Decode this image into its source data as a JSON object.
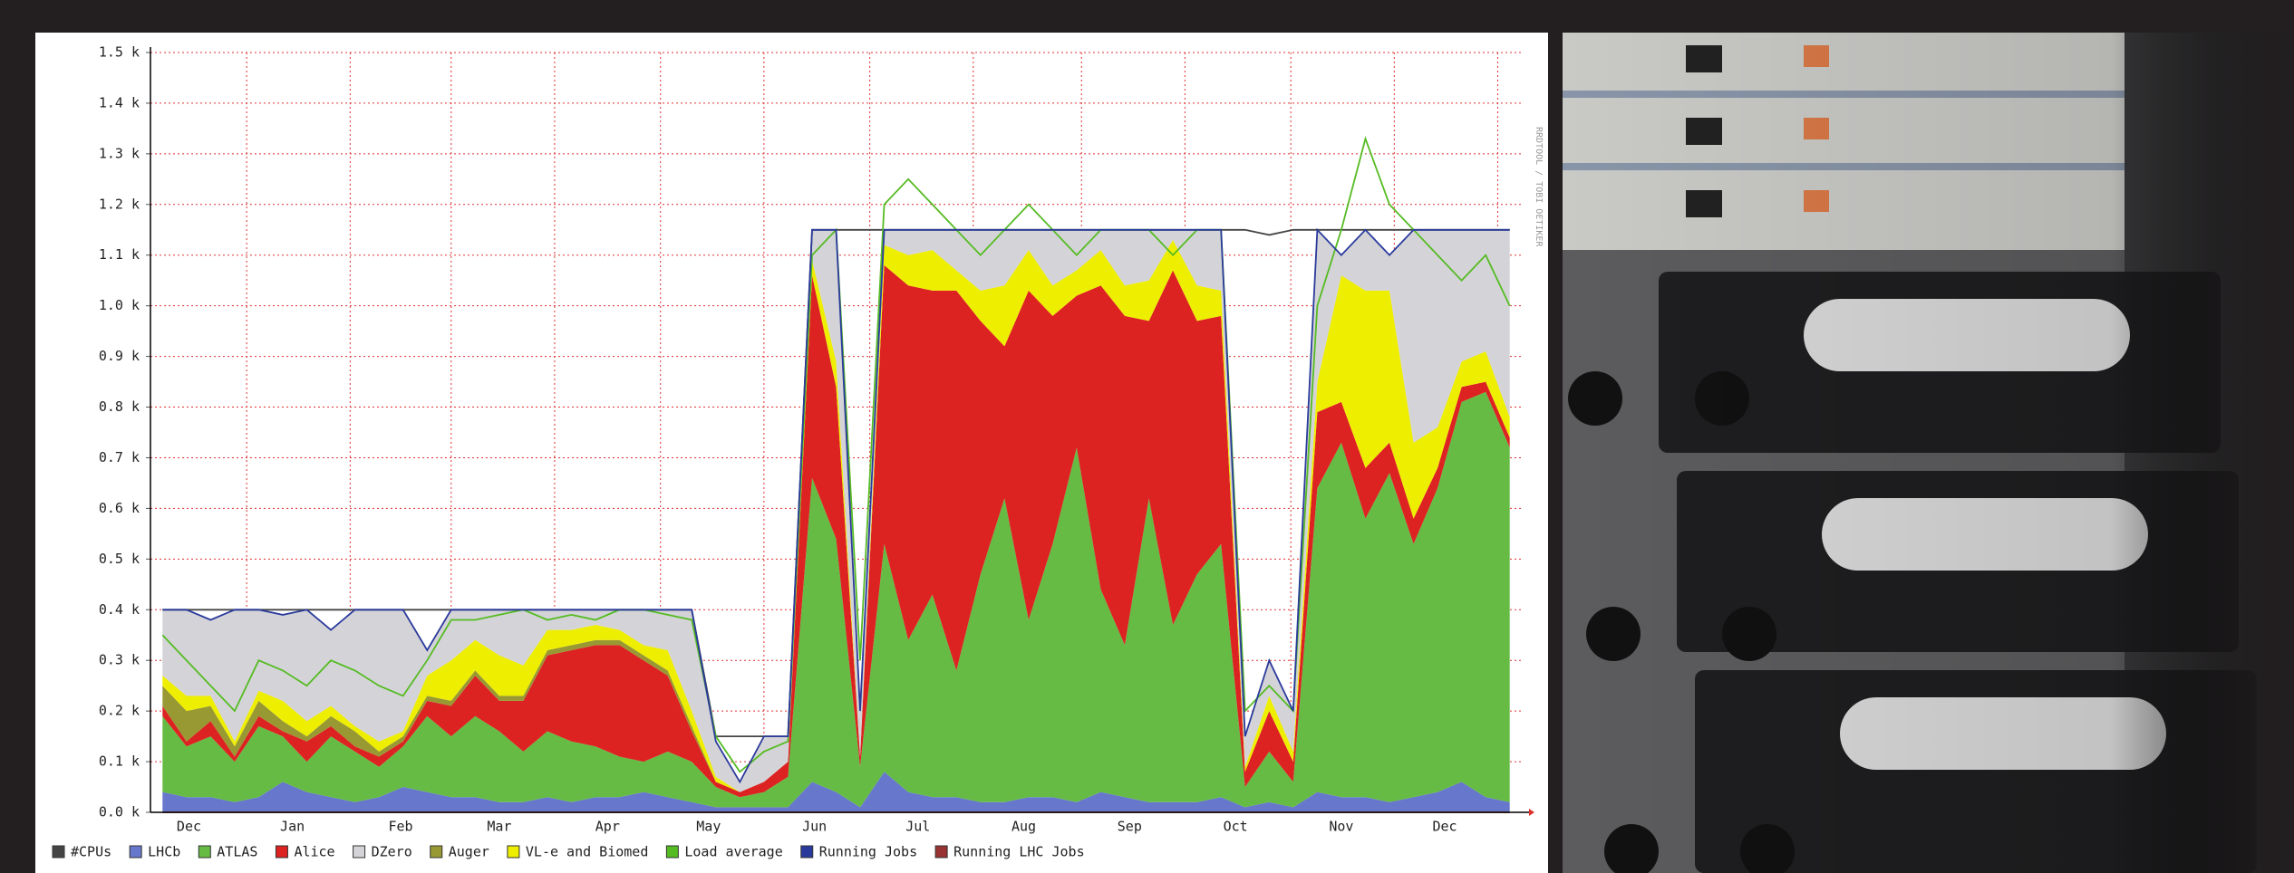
{
  "chart_data": {
    "type": "stacked-area",
    "watermark": "RRDTOOL / TOBI OETIKER",
    "x": [
      0.5,
      1.5,
      2.5,
      3.5,
      4.5,
      5.5,
      6.5,
      7.5,
      8.5,
      9.5,
      10.5,
      11.5,
      12.5,
      13.5,
      14.5,
      15.5,
      16.5,
      17.5,
      18.5,
      19.5,
      20.5,
      21.5,
      22.5,
      23.5,
      24.5,
      25.5,
      26.5,
      27.5,
      28.5,
      29.5,
      30.5,
      31.5,
      32.5,
      33.5,
      34.5,
      35.5,
      36.5,
      37.5,
      38.5,
      39.5,
      40.5,
      41.5,
      42.5,
      43.5,
      44.5,
      45.5,
      46.5,
      47.5,
      48.5,
      49.5,
      50.5,
      51.5,
      52.5,
      53.5,
      54.5,
      55.5,
      56.5
    ],
    "xlim": [
      0,
      57
    ],
    "xticks": [
      {
        "value": 1.6,
        "label": "Dec"
      },
      {
        "value": 5.9,
        "label": "Jan"
      },
      {
        "value": 10.4,
        "label": "Feb"
      },
      {
        "value": 14.5,
        "label": "Mar"
      },
      {
        "value": 19.0,
        "label": "Apr"
      },
      {
        "value": 23.2,
        "label": "May"
      },
      {
        "value": 27.6,
        "label": "Jun"
      },
      {
        "value": 31.9,
        "label": "Jul"
      },
      {
        "value": 36.3,
        "label": "Aug"
      },
      {
        "value": 40.7,
        "label": "Sep"
      },
      {
        "value": 45.1,
        "label": "Oct"
      },
      {
        "value": 49.5,
        "label": "Nov"
      },
      {
        "value": 53.8,
        "label": "Dec"
      }
    ],
    "xgrid": [
      4.0,
      8.3,
      12.5,
      16.8,
      21.2,
      25.5,
      29.9,
      34.2,
      38.7,
      43.0,
      47.4,
      51.7,
      56.0
    ],
    "ylim": [
      0,
      1500
    ],
    "yticks": [
      {
        "value": 0,
        "label": "0.0 k"
      },
      {
        "value": 100,
        "label": "0.1 k"
      },
      {
        "value": 200,
        "label": "0.2 k"
      },
      {
        "value": 300,
        "label": "0.3 k"
      },
      {
        "value": 400,
        "label": "0.4 k"
      },
      {
        "value": 500,
        "label": "0.5 k"
      },
      {
        "value": 600,
        "label": "0.6 k"
      },
      {
        "value": 700,
        "label": "0.7 k"
      },
      {
        "value": 800,
        "label": "0.8 k"
      },
      {
        "value": 900,
        "label": "0.9 k"
      },
      {
        "value": 1000,
        "label": "1.0 k"
      },
      {
        "value": 1100,
        "label": "1.1 k"
      },
      {
        "value": 1200,
        "label": "1.2 k"
      },
      {
        "value": 1300,
        "label": "1.3 k"
      },
      {
        "value": 1400,
        "label": "1.4 k"
      },
      {
        "value": 1500,
        "label": "1.5 k"
      }
    ],
    "grid": true,
    "stack_order": [
      1,
      2,
      3,
      5,
      6,
      4
    ],
    "series": [
      {
        "name": "#CPUs",
        "color": "#444444",
        "kind": "line",
        "values": [
          400,
          400,
          400,
          400,
          400,
          400,
          400,
          400,
          400,
          400,
          400,
          400,
          400,
          400,
          400,
          400,
          400,
          400,
          400,
          400,
          400,
          400,
          400,
          150,
          150,
          150,
          150,
          1150,
          1150,
          1150,
          1150,
          1150,
          1150,
          1150,
          1150,
          1150,
          1150,
          1150,
          1150,
          1150,
          1150,
          1150,
          1150,
          1150,
          1150,
          1150,
          1140,
          1150,
          1150,
          1150,
          1150,
          1150,
          1150,
          1150,
          1150,
          1150,
          1150
        ]
      },
      {
        "name": "LHCb",
        "color": "#6677cc",
        "kind": "area",
        "values": [
          40,
          30,
          30,
          20,
          30,
          60,
          40,
          30,
          20,
          30,
          50,
          40,
          30,
          30,
          20,
          20,
          30,
          20,
          30,
          30,
          40,
          30,
          20,
          10,
          10,
          10,
          10,
          60,
          40,
          10,
          80,
          40,
          30,
          30,
          20,
          20,
          30,
          30,
          20,
          40,
          30,
          20,
          20,
          20,
          30,
          10,
          20,
          10,
          40,
          30,
          30,
          20,
          30,
          40,
          60,
          30,
          20
        ]
      },
      {
        "name": "ATLAS",
        "color": "#66bb44",
        "kind": "area",
        "values": [
          150,
          100,
          120,
          80,
          140,
          90,
          60,
          120,
          100,
          60,
          80,
          150,
          120,
          160,
          140,
          100,
          130,
          120,
          100,
          80,
          60,
          90,
          80,
          40,
          20,
          30,
          60,
          600,
          500,
          80,
          450,
          300,
          400,
          250,
          450,
          600,
          350,
          500,
          700,
          400,
          300,
          600,
          350,
          450,
          500,
          40,
          100,
          50,
          600,
          700,
          550,
          650,
          500,
          600,
          750,
          800,
          700
        ]
      },
      {
        "name": "Alice",
        "color": "#dd2222",
        "kind": "area",
        "values": [
          20,
          10,
          30,
          10,
          20,
          10,
          40,
          20,
          10,
          20,
          10,
          30,
          60,
          80,
          60,
          100,
          150,
          180,
          200,
          220,
          200,
          150,
          60,
          10,
          10,
          20,
          30,
          400,
          300,
          20,
          550,
          700,
          600,
          750,
          500,
          300,
          650,
          450,
          300,
          600,
          650,
          350,
          700,
          500,
          450,
          30,
          80,
          40,
          150,
          80,
          100,
          60,
          50,
          40,
          30,
          20,
          20
        ]
      },
      {
        "name": "DZero",
        "color": "#d4d4d8",
        "kind": "area",
        "values": [
          130,
          170,
          150,
          260,
          160,
          170,
          220,
          150,
          230,
          260,
          240,
          50,
          100,
          60,
          90,
          110,
          40,
          40,
          30,
          40,
          70,
          80,
          200,
          70,
          20,
          90,
          50,
          60,
          260,
          90,
          30,
          50,
          40,
          80,
          120,
          110,
          40,
          110,
          80,
          40,
          110,
          100,
          20,
          110,
          120,
          60,
          70,
          80,
          300,
          40,
          120,
          70,
          420,
          390,
          260,
          240,
          370
        ]
      },
      {
        "name": "Auger",
        "color": "#999933",
        "kind": "area",
        "values": [
          40,
          60,
          30,
          20,
          30,
          20,
          10,
          20,
          30,
          10,
          10,
          10,
          10,
          10,
          10,
          10,
          10,
          10,
          10,
          10,
          10,
          10,
          10,
          0,
          0,
          0,
          0,
          0,
          0,
          0,
          0,
          0,
          0,
          0,
          0,
          0,
          0,
          0,
          0,
          0,
          0,
          0,
          0,
          0,
          0,
          0,
          0,
          0,
          0,
          0,
          0,
          0,
          0,
          0,
          0,
          0,
          0
        ]
      },
      {
        "name": "VL-e and Biomed",
        "color": "#eeee00",
        "kind": "area",
        "values": [
          20,
          30,
          20,
          10,
          20,
          40,
          30,
          20,
          10,
          20,
          10,
          40,
          80,
          60,
          80,
          60,
          40,
          30,
          30,
          20,
          20,
          40,
          30,
          10,
          0,
          0,
          0,
          30,
          50,
          0,
          40,
          60,
          80,
          40,
          60,
          120,
          80,
          60,
          50,
          70,
          60,
          80,
          60,
          70,
          50,
          10,
          30,
          20,
          60,
          250,
          350,
          300,
          150,
          80,
          50,
          60,
          40
        ]
      },
      {
        "name": "Load average",
        "color": "#55bb22",
        "kind": "line",
        "values": [
          350,
          300,
          250,
          200,
          300,
          280,
          250,
          300,
          280,
          250,
          230,
          300,
          380,
          380,
          390,
          400,
          380,
          390,
          380,
          400,
          400,
          390,
          380,
          150,
          80,
          120,
          140,
          1100,
          1150,
          300,
          1200,
          1250,
          1200,
          1150,
          1100,
          1150,
          1200,
          1150,
          1100,
          1150,
          1150,
          1150,
          1100,
          1150,
          1150,
          200,
          250,
          200,
          1000,
          1150,
          1330,
          1200,
          1150,
          1100,
          1050,
          1100,
          1000
        ]
      },
      {
        "name": "Running Jobs",
        "color": "#2a3a9c",
        "kind": "line",
        "values": [
          400,
          400,
          380,
          400,
          400,
          390,
          400,
          360,
          400,
          400,
          400,
          320,
          400,
          400,
          400,
          400,
          400,
          400,
          400,
          400,
          400,
          400,
          400,
          140,
          60,
          150,
          150,
          1150,
          1150,
          200,
          1150,
          1150,
          1150,
          1150,
          1150,
          1150,
          1150,
          1150,
          1150,
          1150,
          1150,
          1150,
          1150,
          1150,
          1150,
          150,
          300,
          200,
          1150,
          1100,
          1150,
          1100,
          1150,
          1150,
          1150,
          1150,
          1150
        ]
      },
      {
        "name": "Running LHC Jobs",
        "color": "#993333",
        "kind": "line",
        "values": [
          0,
          0,
          0,
          0,
          0,
          0,
          0,
          0,
          0,
          0,
          0,
          0,
          0,
          0,
          0,
          0,
          0,
          0,
          0,
          0,
          0,
          0,
          0,
          0,
          0,
          0,
          0,
          0,
          0,
          0,
          0,
          0,
          0,
          0,
          0,
          0,
          0,
          0,
          0,
          0,
          0,
          0,
          0,
          0,
          0,
          0,
          0,
          0,
          0,
          0,
          0,
          0,
          0,
          0,
          0,
          0,
          0
        ]
      }
    ]
  }
}
